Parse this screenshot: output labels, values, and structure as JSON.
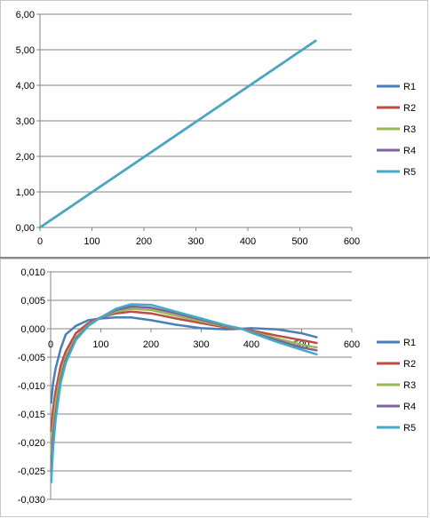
{
  "chart_data": [
    {
      "type": "line",
      "xlim": [
        0,
        600
      ],
      "ylim": [
        0,
        6
      ],
      "x_ticks": [
        "0",
        "100",
        "200",
        "300",
        "400",
        "500",
        "600"
      ],
      "y_ticks": [
        "0,00",
        "1,00",
        "2,00",
        "3,00",
        "4,00",
        "5,00",
        "6,00"
      ],
      "grid": true,
      "legend": "right",
      "series": [
        {
          "name": "R1",
          "color": "#4A7EBB",
          "x": [
            0,
            530
          ],
          "y": [
            0,
            5.25
          ]
        },
        {
          "name": "R2",
          "color": "#BE4B48",
          "x": [
            0,
            530
          ],
          "y": [
            0,
            5.25
          ]
        },
        {
          "name": "R3",
          "color": "#98B954",
          "x": [
            0,
            530
          ],
          "y": [
            0,
            5.25
          ]
        },
        {
          "name": "R4",
          "color": "#7D60A0",
          "x": [
            0,
            530
          ],
          "y": [
            0,
            5.25
          ]
        },
        {
          "name": "R5",
          "color": "#46AAC5",
          "x": [
            0,
            530
          ],
          "y": [
            0,
            5.25
          ]
        }
      ]
    },
    {
      "type": "line",
      "xlim": [
        0,
        600
      ],
      "ylim": [
        -0.03,
        0.01
      ],
      "x_ticks": [
        "0",
        "100",
        "200",
        "300",
        "400",
        "500",
        "600"
      ],
      "y_ticks": [
        "-0,030",
        "-0,025",
        "-0,020",
        "-0,015",
        "-0,010",
        "-0,005",
        "0,000",
        "0,005",
        "0,010"
      ],
      "grid": true,
      "legend": "right",
      "series": [
        {
          "name": "R1",
          "color": "#4A7EBB",
          "x": [
            1,
            5,
            10,
            20,
            30,
            50,
            75,
            100,
            130,
            160,
            200,
            250,
            300,
            350,
            380,
            400,
            450,
            500,
            530
          ],
          "y": [
            -0.013,
            -0.0095,
            -0.007,
            -0.0035,
            -0.001,
            0.0005,
            0.0015,
            0.0018,
            0.002,
            0.002,
            0.0015,
            0.0007,
            0.0001,
            -0.0001,
            0.0,
            0.0001,
            -0.0001,
            -0.0008,
            -0.0015
          ]
        },
        {
          "name": "R2",
          "color": "#BE4B48",
          "x": [
            1,
            5,
            10,
            20,
            30,
            50,
            75,
            100,
            130,
            160,
            200,
            250,
            300,
            350,
            380,
            400,
            450,
            500,
            530
          ],
          "y": [
            -0.018,
            -0.014,
            -0.011,
            -0.0065,
            -0.004,
            -0.0008,
            0.001,
            0.002,
            0.0027,
            0.003,
            0.0027,
            0.0018,
            0.001,
            0.0002,
            0.0,
            -0.0003,
            -0.0012,
            -0.002,
            -0.0025
          ]
        },
        {
          "name": "R3",
          "color": "#98B954",
          "x": [
            1,
            5,
            10,
            20,
            30,
            50,
            75,
            100,
            130,
            160,
            200,
            250,
            300,
            350,
            380,
            400,
            450,
            500,
            530
          ],
          "y": [
            -0.022,
            -0.017,
            -0.013,
            -0.008,
            -0.005,
            -0.0015,
            0.0007,
            0.002,
            0.003,
            0.0035,
            0.0033,
            0.0023,
            0.0013,
            0.0004,
            0.0,
            -0.0005,
            -0.0017,
            -0.0028,
            -0.0033
          ]
        },
        {
          "name": "R4",
          "color": "#7D60A0",
          "x": [
            1,
            5,
            10,
            20,
            30,
            50,
            75,
            100,
            130,
            160,
            200,
            250,
            300,
            350,
            380,
            400,
            450,
            500,
            530
          ],
          "y": [
            -0.025,
            -0.019,
            -0.015,
            -0.009,
            -0.0055,
            -0.0018,
            0.0006,
            0.002,
            0.0033,
            0.0039,
            0.0037,
            0.0027,
            0.0016,
            0.0005,
            0.0,
            -0.0006,
            -0.002,
            -0.0033,
            -0.0038
          ]
        },
        {
          "name": "R5",
          "color": "#46AAC5",
          "x": [
            1,
            5,
            10,
            20,
            30,
            50,
            75,
            100,
            130,
            160,
            200,
            250,
            300,
            350,
            380,
            400,
            450,
            500,
            530
          ],
          "y": [
            -0.027,
            -0.021,
            -0.016,
            -0.0095,
            -0.006,
            -0.002,
            0.0005,
            0.002,
            0.0035,
            0.0043,
            0.0042,
            0.003,
            0.0018,
            0.0006,
            0.0,
            -0.0007,
            -0.0023,
            -0.0037,
            -0.0045
          ]
        }
      ]
    }
  ]
}
